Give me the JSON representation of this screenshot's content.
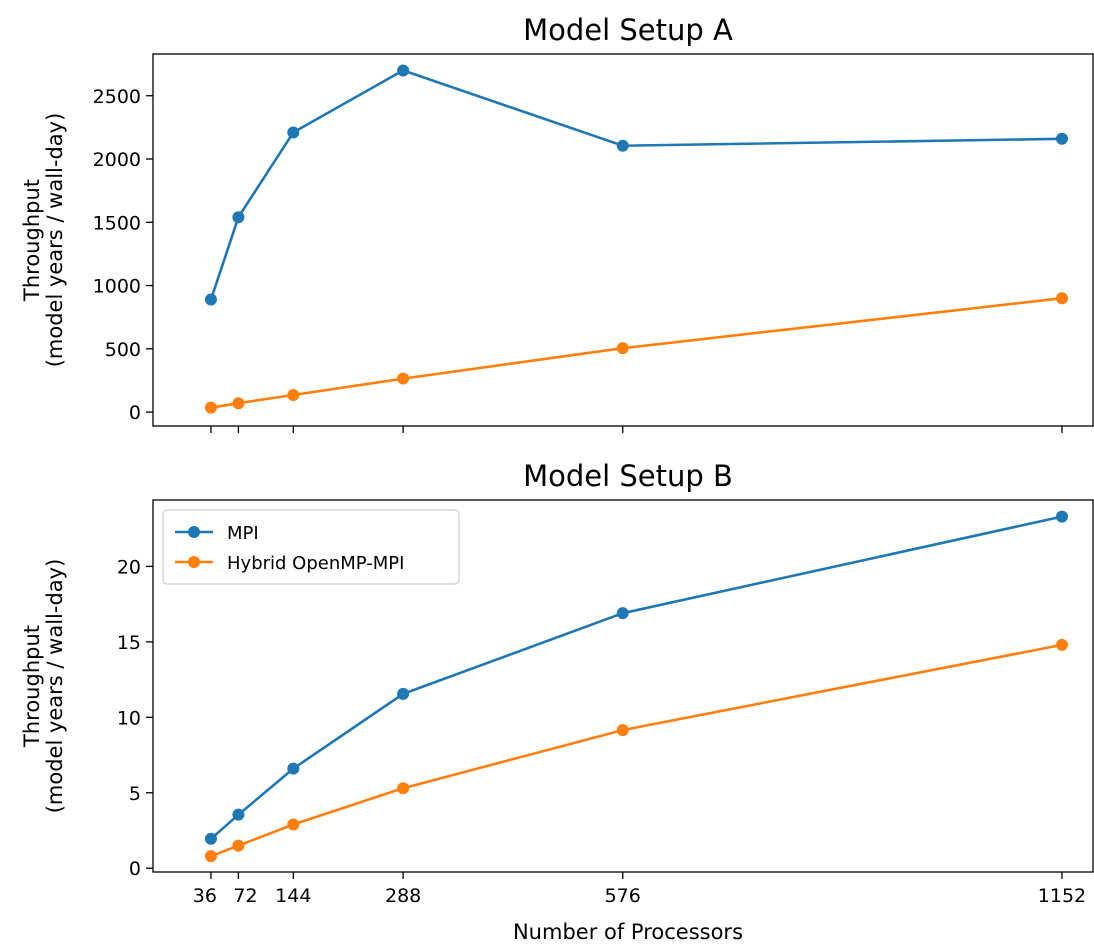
{
  "chart_data": [
    {
      "type": "line",
      "title": "Model Setup A",
      "ylabel_line1": "Throughput",
      "ylabel_line2": "(model years / wall-day)",
      "xlabel": "",
      "x": [
        36,
        72,
        144,
        288,
        576,
        1152
      ],
      "xlim": [
        -40,
        1194
      ],
      "ylim": [
        -110,
        2830
      ],
      "yticks": [
        0,
        500,
        1000,
        1500,
        2000,
        2500
      ],
      "xtick_labels_shown": false,
      "grid": false,
      "series": [
        {
          "name": "MPI",
          "color": "#1f77b4",
          "values": [
            890,
            1540,
            2210,
            2700,
            2105,
            2160
          ]
        },
        {
          "name": "Hybrid OpenMP-MPI",
          "color": "#ff7f0e",
          "values": [
            35,
            70,
            135,
            265,
            505,
            900
          ]
        }
      ]
    },
    {
      "type": "line",
      "title": "Model Setup B",
      "ylabel_line1": "Throughput",
      "ylabel_line2": "(model years / wall-day)",
      "xlabel": "Number of Processors",
      "x": [
        36,
        72,
        144,
        288,
        576,
        1152
      ],
      "xtick_labels": [
        "36",
        "72",
        "144",
        "288",
        "576",
        "1152"
      ],
      "xlim": [
        -40,
        1194
      ],
      "ylim": [
        -0.25,
        24.4
      ],
      "yticks": [
        0,
        5,
        10,
        15,
        20
      ],
      "grid": false,
      "legend": "upper-left",
      "series": [
        {
          "name": "MPI",
          "color": "#1f77b4",
          "values": [
            1.95,
            3.55,
            6.6,
            11.55,
            16.9,
            23.3
          ]
        },
        {
          "name": "Hybrid OpenMP-MPI",
          "color": "#ff7f0e",
          "values": [
            0.8,
            1.5,
            2.9,
            5.3,
            9.15,
            14.8
          ]
        }
      ]
    }
  ]
}
